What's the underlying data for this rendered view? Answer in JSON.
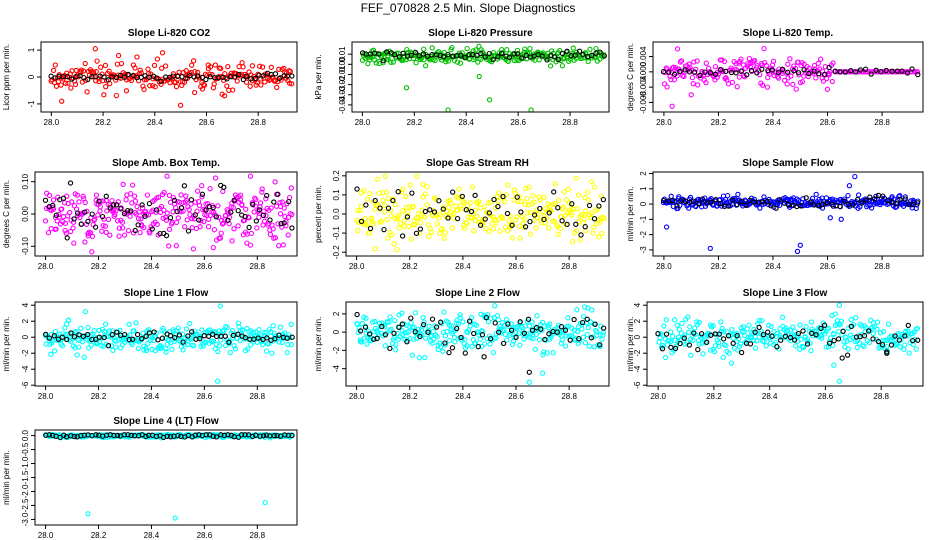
{
  "page": {
    "title": "FEF_070828  2.5 Min. Slope Diagnostics"
  },
  "chart_data": [
    {
      "type": "scatter",
      "title": "Slope Li-820 CO2",
      "ylabel": "Licor ppm per min.",
      "xlabel": "",
      "color": "#ff0000",
      "ylim": [
        -1.3,
        1.3
      ],
      "yticks": [
        "-1",
        "0",
        "1"
      ],
      "ytick_vals": [
        -1,
        0,
        1
      ],
      "xlim": [
        27.96,
        28.95
      ],
      "xticks": [
        "28.0",
        "28.2",
        "28.4",
        "28.6",
        "28.8"
      ],
      "xtick_vals": [
        28.0,
        28.2,
        28.4,
        28.6,
        28.8
      ],
      "x_range": [
        28.0,
        28.93
      ],
      "series": [
        {
          "name": "scatter",
          "n": 230,
          "sd": 0.25,
          "x_range": [
            28.0,
            28.93
          ],
          "color": "#ff0000",
          "outliers": [
            {
              "x": 28.17,
              "y": 1.05
            },
            {
              "x": 28.04,
              "y": -0.9
            },
            {
              "x": 28.5,
              "y": -1.05
            },
            {
              "x": 28.43,
              "y": 0.9
            },
            {
              "x": 28.26,
              "y": 0.8
            },
            {
              "x": 28.67,
              "y": -0.7
            }
          ]
        },
        {
          "name": "black",
          "n": 60,
          "sd": 0.06,
          "x_range": [
            28.0,
            28.93
          ],
          "color": "#000000"
        }
      ]
    },
    {
      "type": "scatter",
      "title": "Slope Li-820 Pressure",
      "ylabel": "kPa per min.",
      "xlabel": "",
      "color": "#00c000",
      "ylim": [
        -0.047,
        0.022
      ],
      "yticks": [
        "-0.04",
        "-0.03",
        "-0.02",
        "-0.01",
        "0.00",
        "0.01"
      ],
      "ytick_vals": [
        -0.04,
        -0.03,
        -0.02,
        -0.01,
        0,
        0.01
      ],
      "xlim": [
        27.96,
        28.95
      ],
      "xticks": [
        "28.0",
        "28.2",
        "28.4",
        "28.6",
        "28.8"
      ],
      "xtick_vals": [
        28.0,
        28.2,
        28.4,
        28.6,
        28.8
      ],
      "series": [
        {
          "name": "scatter",
          "n": 250,
          "sd": 0.0035,
          "mean": 0.008,
          "x_range": [
            28.0,
            28.93
          ],
          "color": "#00c000",
          "outliers": [
            {
              "x": 28.33,
              "y": -0.045
            },
            {
              "x": 28.65,
              "y": -0.045
            },
            {
              "x": 28.49,
              "y": -0.035
            },
            {
              "x": 28.17,
              "y": -0.023
            },
            {
              "x": 28.45,
              "y": -0.012
            }
          ]
        },
        {
          "name": "black",
          "n": 60,
          "sd": 0.002,
          "mean": 0.009,
          "x_range": [
            28.0,
            28.93
          ],
          "color": "#000000"
        }
      ]
    },
    {
      "type": "scatter",
      "title": "Slope Li-820 Temp.",
      "ylabel": "degrees C per min.",
      "xlabel": "",
      "color": "#ff00ff",
      "ylim": [
        -0.0105,
        0.0078
      ],
      "yticks": [
        "-0.008",
        "-0.004",
        "0.000",
        "0.004"
      ],
      "ytick_vals": [
        -0.008,
        -0.004,
        0,
        0.004
      ],
      "xlim": [
        27.96,
        28.95
      ],
      "xticks": [
        "28.0",
        "28.2",
        "28.4",
        "28.6",
        "28.8"
      ],
      "xtick_vals": [
        28.0,
        28.2,
        28.4,
        28.6,
        28.8
      ],
      "series": [
        {
          "name": "scatter",
          "n": 180,
          "sd": 0.0018,
          "x_range": [
            28.0,
            28.62
          ],
          "color": "#ff00ff",
          "outliers": [
            {
              "x": 28.03,
              "y": -0.009
            },
            {
              "x": 28.05,
              "y": 0.006
            },
            {
              "x": 28.1,
              "y": -0.006
            }
          ]
        },
        {
          "name": "flat",
          "n": 45,
          "sd": 0.0,
          "x_range": [
            28.63,
            28.93
          ],
          "color": "#ff00ff"
        },
        {
          "name": "black",
          "n": 50,
          "sd": 0.0005,
          "x_range": [
            28.0,
            28.93
          ],
          "color": "#000000"
        }
      ]
    },
    {
      "type": "scatter",
      "title": "Slope Amb. Box Temp.",
      "ylabel": "degrees C per min.",
      "xlabel": "",
      "color": "#ff00ff",
      "ylim": [
        -0.13,
        0.13
      ],
      "yticks": [
        "-0.10",
        "0.00",
        "0.10"
      ],
      "ytick_vals": [
        -0.1,
        0,
        0.1
      ],
      "xlim": [
        27.96,
        28.95
      ],
      "xticks": [
        "28.0",
        "28.2",
        "28.4",
        "28.6",
        "28.8"
      ],
      "xtick_vals": [
        28.0,
        28.2,
        28.4,
        28.6,
        28.8
      ],
      "series": [
        {
          "name": "scatter",
          "n": 320,
          "sd": 0.045,
          "x_range": [
            28.0,
            28.93
          ],
          "color": "#ff00ff"
        },
        {
          "name": "black",
          "n": 70,
          "sd": 0.04,
          "x_range": [
            28.0,
            28.93
          ],
          "color": "#000000"
        }
      ]
    },
    {
      "type": "scatter",
      "title": "Slope Gas Stream RH",
      "ylabel": "percent per min.",
      "xlabel": "",
      "color": "#ffff00",
      "ylim": [
        -0.22,
        0.22
      ],
      "yticks": [
        "-0.2",
        "-0.1",
        "0.0",
        "0.1",
        "0.2"
      ],
      "ytick_vals": [
        -0.2,
        -0.1,
        0,
        0.1,
        0.2
      ],
      "xlim": [
        27.96,
        28.95
      ],
      "xticks": [
        "28.0",
        "28.2",
        "28.4",
        "28.6",
        "28.8"
      ],
      "xtick_vals": [
        28.0,
        28.2,
        28.4,
        28.6,
        28.8
      ],
      "series": [
        {
          "name": "scatter",
          "n": 300,
          "sd": 0.07,
          "x_range": [
            28.0,
            28.93
          ],
          "color": "#ffff00"
        },
        {
          "name": "black",
          "n": 55,
          "sd": 0.07,
          "x_range": [
            28.0,
            28.93
          ],
          "color": "#000000"
        }
      ]
    },
    {
      "type": "scatter",
      "title": "Slope Sample Flow",
      "ylabel": "ml/min per min.",
      "xlabel": "",
      "color": "#0000ff",
      "ylim": [
        -3.4,
        2.1
      ],
      "yticks": [
        "-3",
        "-2",
        "-1",
        "0",
        "1",
        "2"
      ],
      "ytick_vals": [
        -3,
        -2,
        -1,
        0,
        1,
        2
      ],
      "xlim": [
        27.96,
        28.95
      ],
      "xticks": [
        "28.0",
        "28.2",
        "28.4",
        "28.6",
        "28.8"
      ],
      "xtick_vals": [
        28.0,
        28.2,
        28.4,
        28.6,
        28.8
      ],
      "series": [
        {
          "name": "scatter",
          "n": 280,
          "sd": 0.2,
          "mean": 0.1,
          "x_range": [
            28.0,
            28.93
          ],
          "color": "#0000ff",
          "outliers": [
            {
              "x": 28.01,
              "y": -1.5
            },
            {
              "x": 28.17,
              "y": -2.9
            },
            {
              "x": 28.49,
              "y": -3.1
            },
            {
              "x": 28.5,
              "y": -2.7
            },
            {
              "x": 28.7,
              "y": 1.8
            },
            {
              "x": 28.68,
              "y": 1.2
            },
            {
              "x": 28.65,
              "y": -1.0
            },
            {
              "x": 28.61,
              "y": -0.9
            }
          ]
        },
        {
          "name": "black",
          "n": 60,
          "sd": 0.2,
          "mean": 0.1,
          "x_range": [
            28.0,
            28.93
          ],
          "color": "#000000"
        }
      ]
    },
    {
      "type": "scatter",
      "title": "Slope Line 1 Flow",
      "ylabel": "ml/min per min.",
      "xlabel": "",
      "color": "#00ffff",
      "ylim": [
        -6.1,
        4.4
      ],
      "yticks": [
        "-6",
        "-4",
        "-2",
        "0",
        "2",
        "4"
      ],
      "ytick_vals": [
        -6,
        -4,
        -2,
        0,
        2,
        4
      ],
      "xlim": [
        27.96,
        28.95
      ],
      "xticks": [
        "28.0",
        "28.2",
        "28.4",
        "28.6",
        "28.8"
      ],
      "xtick_vals": [
        28.0,
        28.2,
        28.4,
        28.6,
        28.8
      ],
      "series": [
        {
          "name": "scatter",
          "n": 300,
          "sd": 0.9,
          "x_range": [
            28.0,
            28.93
          ],
          "color": "#00ffff",
          "outliers": [
            {
              "x": 28.65,
              "y": -5.5
            },
            {
              "x": 28.66,
              "y": 3.9
            },
            {
              "x": 28.15,
              "y": 3.2
            }
          ]
        },
        {
          "name": "black",
          "n": 60,
          "sd": 0.3,
          "x_range": [
            28.0,
            28.93
          ],
          "color": "#000000"
        }
      ]
    },
    {
      "type": "scatter",
      "title": "Slope Line 2 Flow",
      "ylabel": "ml/min per min.",
      "xlabel": "",
      "color": "#00ffff",
      "ylim": [
        -5.9,
        3.3
      ],
      "yticks": [
        "-4",
        "-2",
        "0",
        "2"
      ],
      "ytick_vals": [
        -4,
        -2,
        0,
        2
      ],
      "xlim": [
        27.96,
        28.95
      ],
      "xticks": [
        "28.0",
        "28.2",
        "28.4",
        "28.6",
        "28.8"
      ],
      "xtick_vals": [
        28.0,
        28.2,
        28.4,
        28.6,
        28.8
      ],
      "series": [
        {
          "name": "scatter",
          "n": 300,
          "sd": 1.1,
          "x_range": [
            28.0,
            28.93
          ],
          "color": "#00ffff",
          "outliers": [
            {
              "x": 28.65,
              "y": -5.5
            },
            {
              "x": 28.52,
              "y": 2.9
            },
            {
              "x": 28.7,
              "y": -4.5
            }
          ]
        },
        {
          "name": "black",
          "n": 60,
          "sd": 1.0,
          "x_range": [
            28.0,
            28.93
          ],
          "color": "#000000",
          "outliers": [
            {
              "x": 28.65,
              "y": -4.4
            },
            {
              "x": 28.48,
              "y": -2.7
            }
          ]
        }
      ]
    },
    {
      "type": "scatter",
      "title": "Slope Line 3 Flow",
      "ylabel": "ml/min per min.",
      "xlabel": "",
      "color": "#00ffff",
      "ylim": [
        -6.1,
        4.4
      ],
      "yticks": [
        "-6",
        "-4",
        "-2",
        "0",
        "2",
        "4"
      ],
      "ytick_vals": [
        -6,
        -4,
        -2,
        0,
        2,
        4
      ],
      "xlim": [
        27.96,
        28.95
      ],
      "xticks": [
        "28.0",
        "28.2",
        "28.4",
        "28.6",
        "28.8"
      ],
      "xtick_vals": [
        28.0,
        28.2,
        28.4,
        28.6,
        28.8
      ],
      "series": [
        {
          "name": "scatter",
          "n": 300,
          "sd": 1.0,
          "x_range": [
            28.0,
            28.93
          ],
          "color": "#00ffff",
          "outliers": [
            {
              "x": 28.65,
              "y": -5.5
            },
            {
              "x": 28.65,
              "y": 4.0
            },
            {
              "x": 28.63,
              "y": -3.5
            }
          ]
        },
        {
          "name": "black",
          "n": 60,
          "sd": 0.9,
          "x_range": [
            28.0,
            28.93
          ],
          "color": "#000000",
          "outliers": [
            {
              "x": 28.66,
              "y": -2.6
            },
            {
              "x": 28.82,
              "y": -2.0
            }
          ]
        }
      ]
    },
    {
      "type": "scatter",
      "title": "Slope Line 4 (LT) Flow",
      "ylabel": "ml/min per min.",
      "xlabel": "",
      "color": "#00ffff",
      "ylim": [
        -3.2,
        0.2
      ],
      "yticks": [
        "-3.0",
        "-2.5",
        "-2.0",
        "-1.5",
        "-1.0",
        "-0.5",
        "0.0"
      ],
      "ytick_vals": [
        -3,
        -2.5,
        -2,
        -1.5,
        -1,
        -0.5,
        0
      ],
      "xlim": [
        27.96,
        28.95
      ],
      "xticks": [
        "28.0",
        "28.2",
        "28.4",
        "28.6",
        "28.8"
      ],
      "xtick_vals": [
        28.0,
        28.2,
        28.4,
        28.6,
        28.8
      ],
      "series": [
        {
          "name": "scatter",
          "n": 260,
          "sd": 0.03,
          "x_range": [
            28.0,
            28.93
          ],
          "color": "#00ffff",
          "outliers": [
            {
              "x": 28.16,
              "y": -2.8
            },
            {
              "x": 28.49,
              "y": -2.95
            },
            {
              "x": 28.83,
              "y": -2.4
            }
          ]
        },
        {
          "name": "black",
          "n": 70,
          "sd": 0.03,
          "x_range": [
            28.0,
            28.93
          ],
          "color": "#000000"
        }
      ]
    }
  ]
}
